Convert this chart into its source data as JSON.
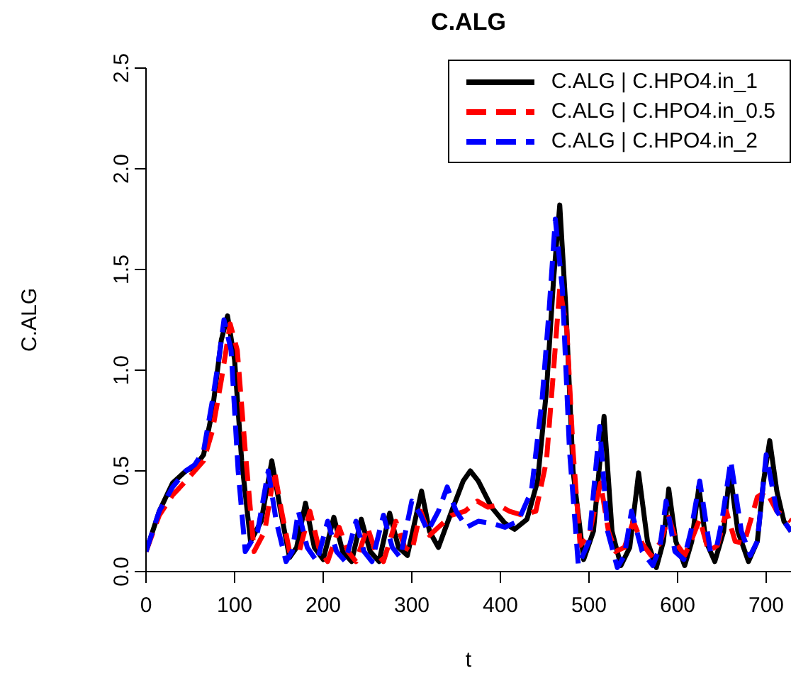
{
  "chart_data": {
    "type": "line",
    "title": "C.ALG",
    "xlabel": "t",
    "ylabel": "C.ALG",
    "xlim": [
      0,
      728
    ],
    "xticks": [
      0,
      100,
      200,
      300,
      400,
      500,
      600,
      700
    ],
    "ylim": [
      0,
      2.5
    ],
    "yticks": [
      {
        "value": 0,
        "label": "0.0"
      },
      {
        "value": 0.5,
        "label": "0.5"
      },
      {
        "value": 1,
        "label": "1.0"
      },
      {
        "value": 1.5,
        "label": "1.5"
      },
      {
        "value": 2,
        "label": "2.0"
      },
      {
        "value": 2.5,
        "label": "2.5"
      }
    ],
    "grid": false,
    "legend": "top right",
    "marker": "none",
    "series": [
      {
        "name": "C.ALG | C.HPO4.in_1",
        "color": "#000000",
        "line_style": "solid",
        "x": [
          0,
          15,
          30,
          45,
          55,
          65,
          75,
          85,
          92,
          100,
          108,
          118,
          130,
          142,
          152,
          162,
          170,
          180,
          190,
          200,
          212,
          222,
          232,
          243,
          253,
          263,
          275,
          285,
          295,
          311,
          320,
          330,
          345,
          358,
          366,
          375,
          390,
          405,
          416,
          430,
          442,
          452,
          460,
          467,
          474,
          482,
          494,
          505,
          517,
          526,
          536,
          546,
          556,
          566,
          576,
          584,
          590,
          598,
          608,
          616,
          624,
          632,
          642,
          652,
          659,
          668,
          680,
          690,
          697,
          704,
          712,
          720,
          728
        ],
        "values": [
          0.1,
          0.3,
          0.44,
          0.5,
          0.52,
          0.58,
          0.8,
          1.15,
          1.27,
          1.05,
          0.55,
          0.15,
          0.25,
          0.55,
          0.3,
          0.07,
          0.12,
          0.34,
          0.12,
          0.06,
          0.27,
          0.1,
          0.05,
          0.26,
          0.1,
          0.05,
          0.29,
          0.12,
          0.08,
          0.4,
          0.2,
          0.12,
          0.3,
          0.45,
          0.5,
          0.45,
          0.32,
          0.24,
          0.21,
          0.26,
          0.45,
          0.9,
          1.45,
          1.82,
          1.3,
          0.5,
          0.06,
          0.2,
          0.77,
          0.2,
          0.03,
          0.12,
          0.49,
          0.15,
          0.02,
          0.15,
          0.41,
          0.15,
          0.03,
          0.15,
          0.42,
          0.15,
          0.05,
          0.2,
          0.5,
          0.2,
          0.05,
          0.15,
          0.45,
          0.65,
          0.4,
          0.25,
          0.2
        ]
      },
      {
        "name": "C.ALG | C.HPO4.in_0.5",
        "color": "#ff0000",
        "line_style": "dashed",
        "x": [
          0,
          15,
          30,
          45,
          55,
          65,
          75,
          85,
          95,
          103,
          112,
          122,
          134,
          145,
          153,
          162,
          173,
          185,
          195,
          205,
          218,
          228,
          237,
          250,
          259,
          268,
          282,
          292,
          300,
          310,
          320,
          330,
          345,
          360,
          374,
          386,
          398,
          410,
          425,
          440,
          452,
          460,
          467,
          475,
          482,
          490,
          500,
          513,
          522,
          530,
          540,
          550,
          560,
          570,
          580,
          590,
          600,
          608,
          615,
          625,
          635,
          645,
          655,
          665,
          675,
          690,
          700,
          712,
          728
        ],
        "values": [
          0.1,
          0.28,
          0.38,
          0.45,
          0.5,
          0.55,
          0.7,
          0.95,
          1.23,
          1.1,
          0.6,
          0.1,
          0.2,
          0.5,
          0.3,
          0.1,
          0.1,
          0.3,
          0.12,
          0.05,
          0.22,
          0.1,
          0.05,
          0.22,
          0.1,
          0.05,
          0.25,
          0.12,
          0.1,
          0.3,
          0.18,
          0.22,
          0.28,
          0.3,
          0.35,
          0.32,
          0.33,
          0.3,
          0.28,
          0.3,
          0.55,
          1.0,
          1.41,
          1.2,
          0.6,
          0.13,
          0.18,
          0.44,
          0.2,
          0.1,
          0.12,
          0.25,
          0.14,
          0.08,
          0.14,
          0.27,
          0.13,
          0.08,
          0.15,
          0.26,
          0.1,
          0.13,
          0.3,
          0.15,
          0.14,
          0.37,
          0.4,
          0.3,
          0.25
        ]
      },
      {
        "name": "C.ALG | C.HPO4.in_2",
        "color": "#0000ff",
        "line_style": "dashed",
        "x": [
          0,
          15,
          30,
          45,
          55,
          65,
          75,
          82,
          88,
          96,
          104,
          112,
          126,
          138,
          147,
          158,
          165,
          172,
          182,
          193,
          205,
          215,
          225,
          237,
          246,
          255,
          268,
          278,
          287,
          300,
          310,
          318,
          330,
          340,
          350,
          362,
          375,
          390,
          405,
          420,
          435,
          447,
          455,
          462,
          470,
          478,
          488,
          500,
          512,
          521,
          532,
          540,
          548,
          560,
          572,
          580,
          587,
          597,
          607,
          615,
          625,
          637,
          644,
          650,
          660,
          672,
          682,
          690,
          700,
          712,
          728
        ],
        "values": [
          0.1,
          0.3,
          0.42,
          0.5,
          0.53,
          0.6,
          0.85,
          1.05,
          1.25,
          1.1,
          0.5,
          0.1,
          0.2,
          0.5,
          0.25,
          0.05,
          0.1,
          0.3,
          0.12,
          0.05,
          0.25,
          0.1,
          0.05,
          0.25,
          0.1,
          0.05,
          0.28,
          0.12,
          0.07,
          0.35,
          0.28,
          0.2,
          0.3,
          0.42,
          0.3,
          0.22,
          0.25,
          0.24,
          0.22,
          0.25,
          0.4,
          0.85,
          1.3,
          1.75,
          1.4,
          0.6,
          0.03,
          0.15,
          0.72,
          0.2,
          0.02,
          0.08,
          0.3,
          0.1,
          0.03,
          0.12,
          0.35,
          0.1,
          0.06,
          0.2,
          0.45,
          0.1,
          0.12,
          0.25,
          0.55,
          0.2,
          0.08,
          0.15,
          0.58,
          0.3,
          0.2
        ]
      }
    ]
  }
}
